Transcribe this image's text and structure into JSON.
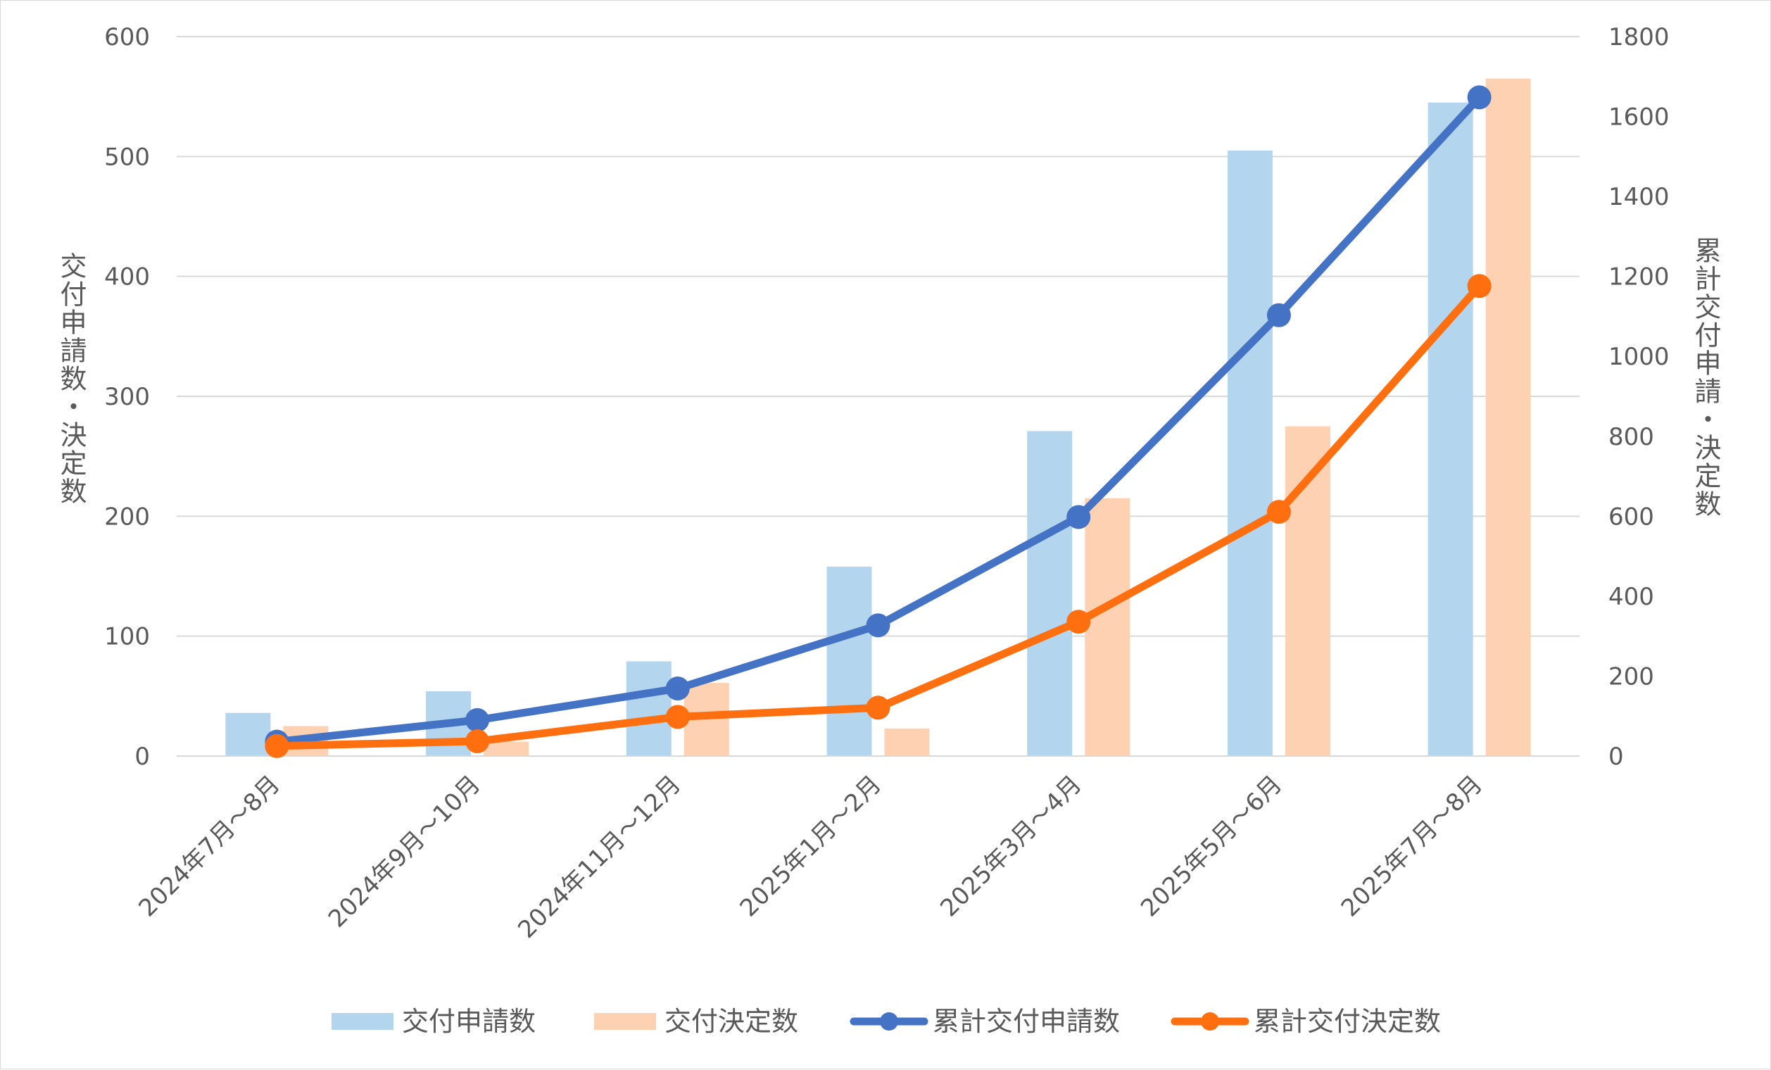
{
  "chart_data": {
    "type": "bar",
    "categories": [
      "2024年7月～8月",
      "2024年9月～10月",
      "2024年11月～12月",
      "2025年1月～2月",
      "2025年3月～4月",
      "2025年5月～6月",
      "2025年7月～8月"
    ],
    "series": [
      {
        "name": "交付申請数",
        "type": "bar",
        "axis": "left",
        "color": "#b4d5ee",
        "values": [
          36,
          54,
          79,
          158,
          271,
          505,
          545
        ]
      },
      {
        "name": "交付決定数",
        "type": "bar",
        "axis": "left",
        "color": "#fdd1b2",
        "values": [
          25,
          12,
          61,
          23,
          215,
          275,
          565
        ]
      },
      {
        "name": "累計交付申請数",
        "type": "line",
        "axis": "right",
        "color": "#4472c4",
        "values": [
          36,
          90,
          169,
          327,
          598,
          1103,
          1648
        ]
      },
      {
        "name": "累計交付決定数",
        "type": "line",
        "axis": "right",
        "color": "#ff6f0f",
        "values": [
          25,
          37,
          98,
          121,
          336,
          611,
          1176
        ]
      }
    ],
    "y_left": {
      "label": "交付申請数・決定数",
      "ylim": [
        0,
        600
      ],
      "ticks": [
        "0",
        "100",
        "200",
        "300",
        "400",
        "500",
        "600"
      ]
    },
    "y_right": {
      "label": "累計交付申請・決定数",
      "ylim": [
        0,
        1800
      ],
      "ticks": [
        "0",
        "200",
        "400",
        "600",
        "800",
        "1000",
        "1200",
        "1400",
        "1600",
        "1800"
      ]
    },
    "grid": true,
    "legend_position": "bottom"
  }
}
